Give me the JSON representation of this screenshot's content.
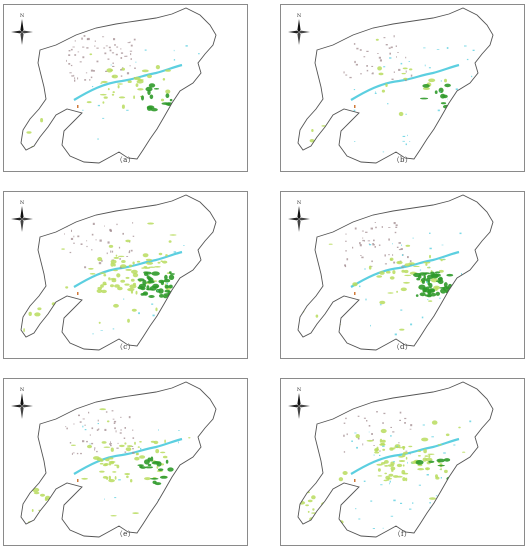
{
  "panels": [
    {
      "label": "（a）"
    },
    {
      "label": "（b）"
    },
    {
      "label": "（c）"
    },
    {
      "label": "（d）"
    },
    {
      "label": "（e）"
    },
    {
      "label": "（f）"
    }
  ],
  "compass": {
    "letter": "N"
  },
  "legend_colors": {
    "boundary": "#555555",
    "built": "#a08a8e",
    "water": "#5ccfe0",
    "light_green": "#b9dc5e",
    "dark_green": "#2f9a2a",
    "orange": "#d07a3a"
  }
}
